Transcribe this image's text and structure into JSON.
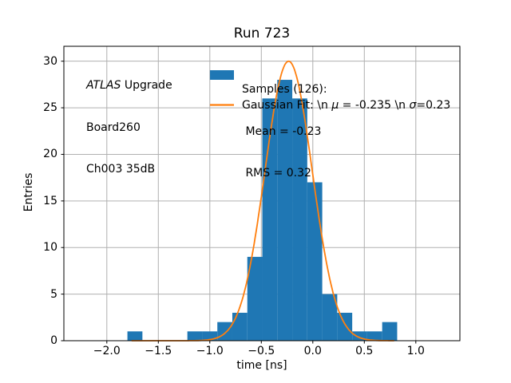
{
  "title": "Run 723",
  "axes": {
    "xlabel": "time [ns]",
    "ylabel": "Entries"
  },
  "annotation": {
    "atlas": "ATLAS",
    "upgrade": " Upgrade",
    "line2": "Board260",
    "line3": "Ch003 35dB"
  },
  "legend": {
    "samples_title": "Samples (126):",
    "samples_mean": " Mean = -0.23",
    "samples_rms": " RMS = 0.32",
    "gauss_prefix": "Gaussian Fit: \\n ",
    "mu_symbol": "μ",
    "gauss_mid": " = -0.235 \\n ",
    "sigma_symbol": "σ",
    "gauss_suffix": "=0.23"
  },
  "colors": {
    "hist": "#1f77b4",
    "fit": "#ff7f0e",
    "grid": "#b0b0b0",
    "spine": "#000000",
    "text": "#000000"
  },
  "chart_data": {
    "type": "bar",
    "subtype": "histogram",
    "title": "Run 723",
    "xlabel": "time [ns]",
    "ylabel": "Entries",
    "grid": true,
    "legend_position": "upper center, no frame",
    "xlim": [
      -2.417,
      1.428
    ],
    "ylim": [
      0,
      31.6
    ],
    "xticks": [
      {
        "v": -2.0,
        "label": "−2.0"
      },
      {
        "v": -1.5,
        "label": "−1.5"
      },
      {
        "v": -1.0,
        "label": "−1.0"
      },
      {
        "v": -0.5,
        "label": "−0.5"
      },
      {
        "v": 0.0,
        "label": "0.0"
      },
      {
        "v": 0.5,
        "label": "0.5"
      },
      {
        "v": 1.0,
        "label": "1.0"
      }
    ],
    "yticks": [
      {
        "v": 0,
        "label": "0"
      },
      {
        "v": 5,
        "label": "5"
      },
      {
        "v": 10,
        "label": "10"
      },
      {
        "v": 15,
        "label": "15"
      },
      {
        "v": 20,
        "label": "20"
      },
      {
        "v": 25,
        "label": "25"
      },
      {
        "v": 30,
        "label": "30"
      }
    ],
    "histogram": {
      "bin_start": -1.8,
      "bin_width": 0.1455,
      "counts": [
        1,
        0,
        0,
        0,
        1,
        1,
        2,
        3,
        9,
        26,
        28,
        26,
        17,
        5,
        3,
        1,
        1,
        2
      ],
      "total_samples": 126,
      "mean": -0.23,
      "rms": 0.32
    },
    "fit": {
      "shape": "gaussian",
      "amplitude": 30,
      "mu": -0.235,
      "sigma": 0.23,
      "x_range": [
        -1.76,
        0.79
      ]
    }
  }
}
